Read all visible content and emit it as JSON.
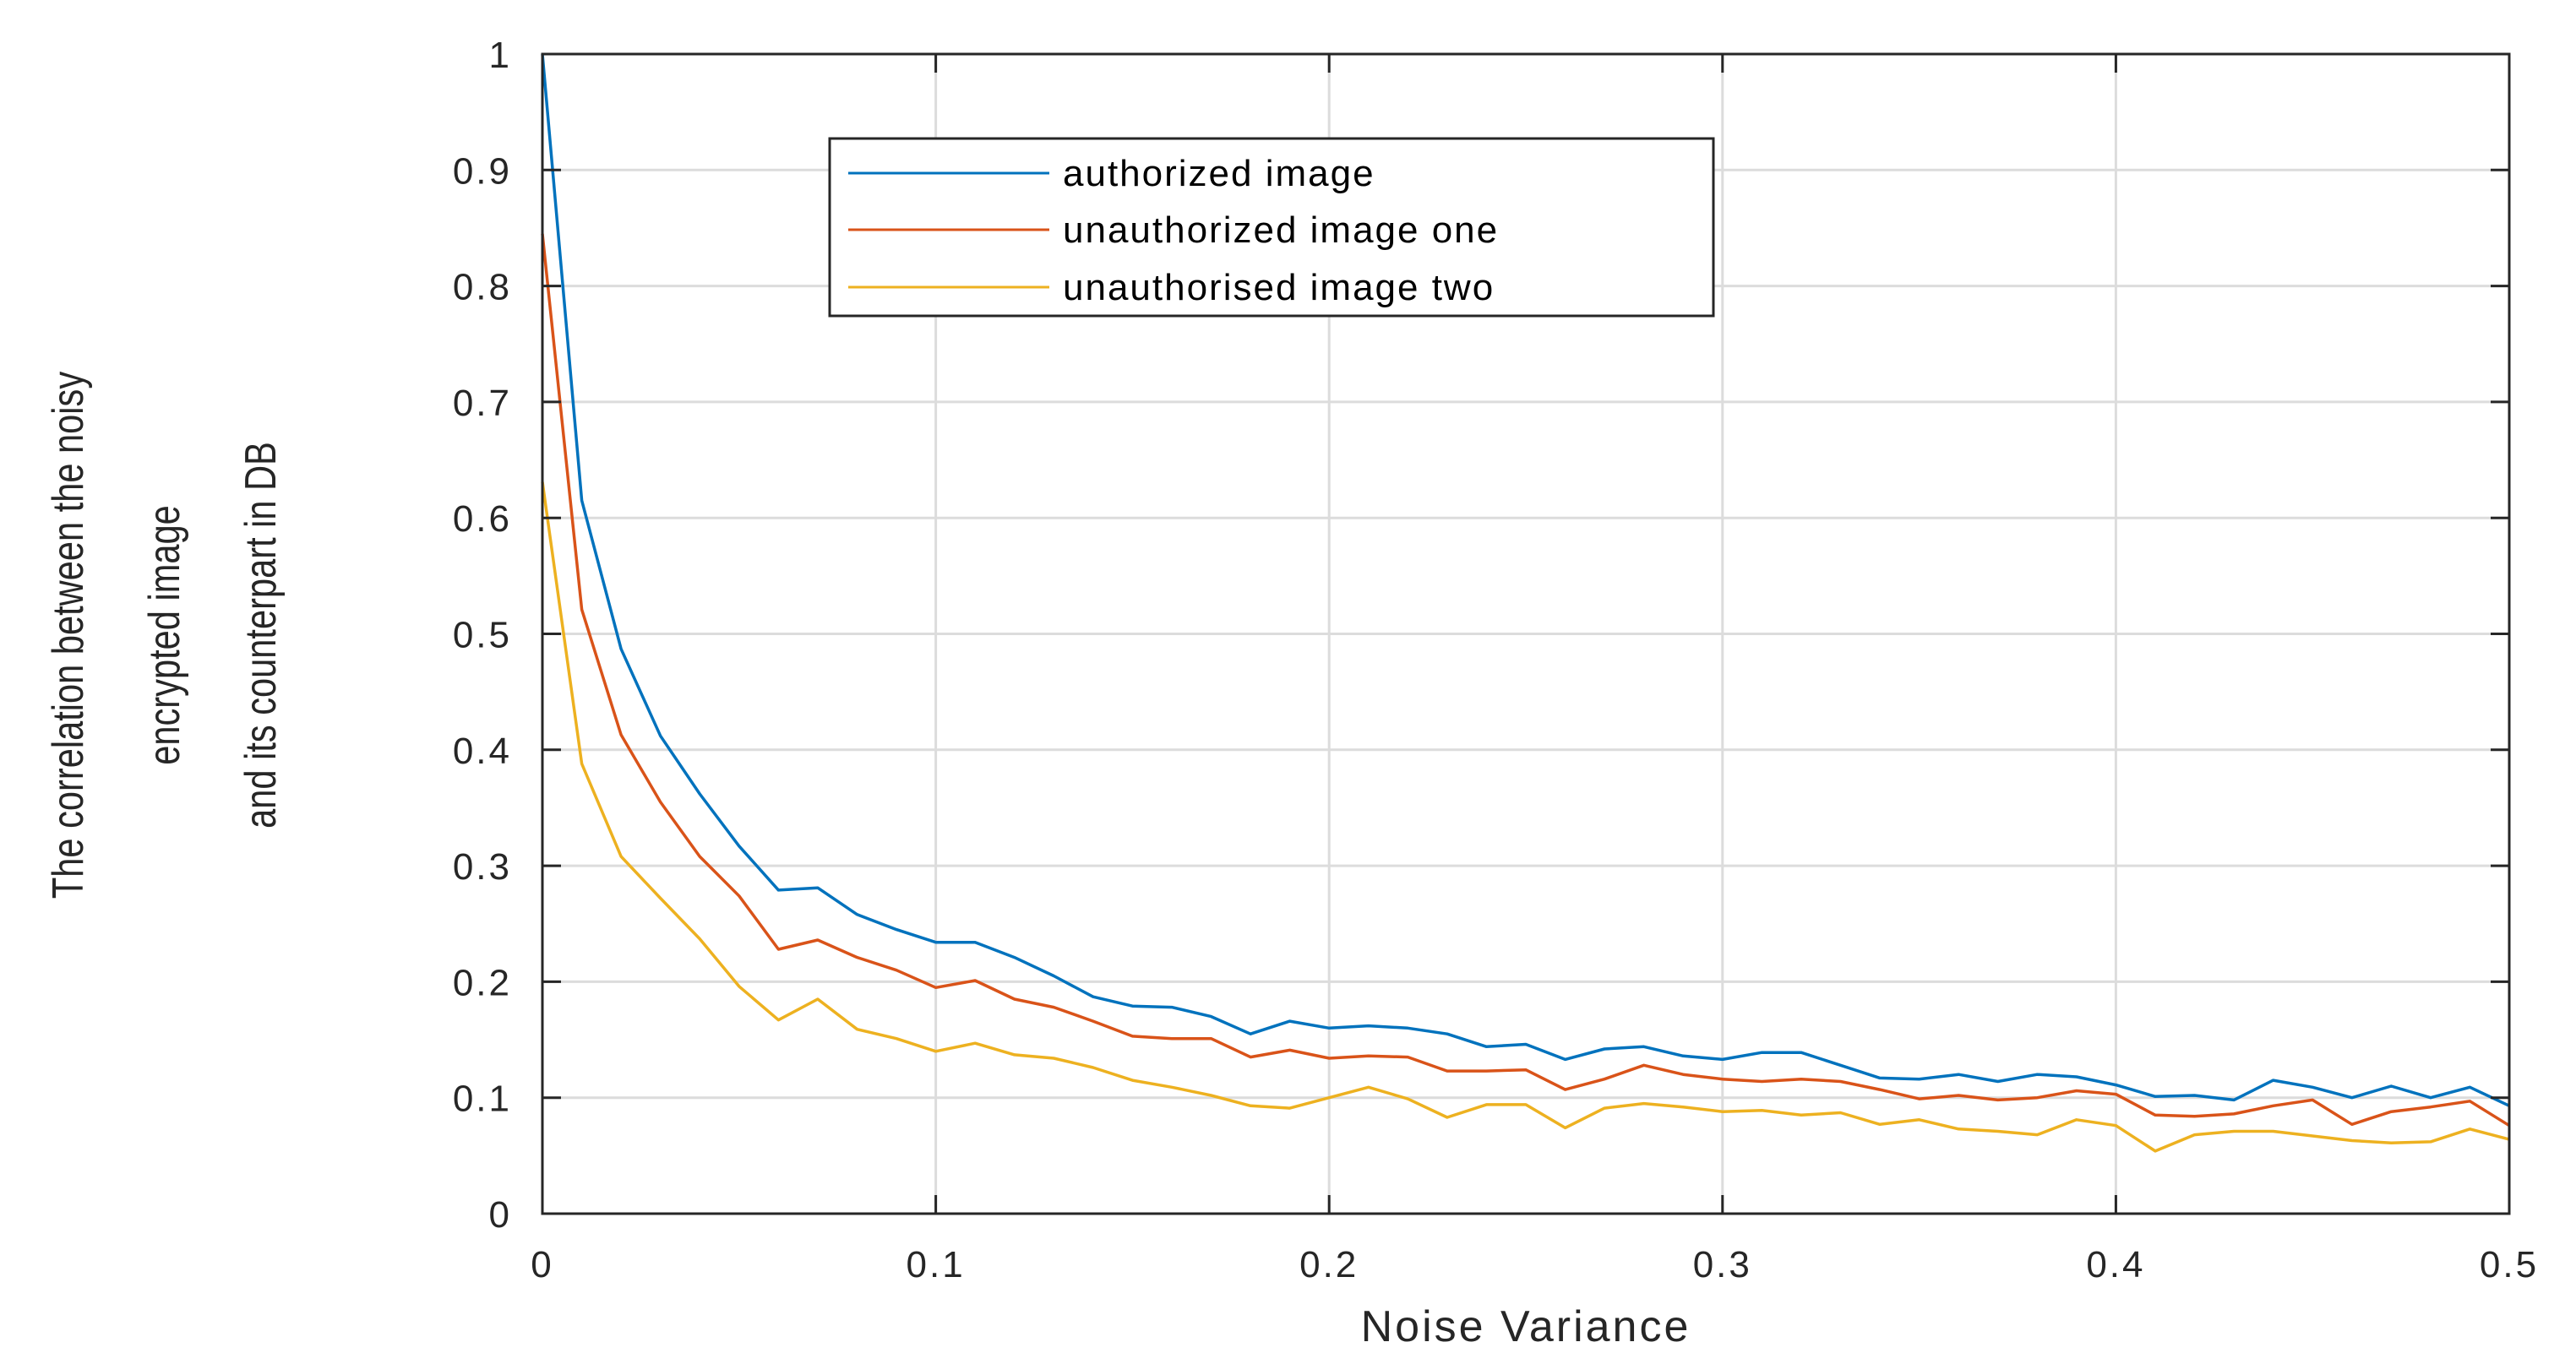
{
  "chart_data": {
    "type": "line",
    "title": "",
    "xlabel": "Noise Variance",
    "ylabel_lines": [
      "The correlation between the noisy",
      "encrypted  image",
      "and its counterpart in DB"
    ],
    "xlim": [
      0,
      0.5
    ],
    "ylim": [
      0,
      1
    ],
    "xticks": [
      0,
      0.1,
      0.2,
      0.3,
      0.4,
      0.5
    ],
    "xtick_labels": [
      "0",
      "0.1",
      "0.2",
      "0.3",
      "0.4",
      "0.5"
    ],
    "yticks": [
      0,
      0.1,
      0.2,
      0.3,
      0.4,
      0.5,
      0.6,
      0.7,
      0.8,
      0.9,
      1
    ],
    "ytick_labels": [
      "0",
      "0.1",
      "0.2",
      "0.3",
      "0.4",
      "0.5",
      "0.6",
      "0.7",
      "0.8",
      "0.9",
      "1"
    ],
    "grid": true,
    "legend_position": "top-center",
    "x": [
      0,
      0.01,
      0.02,
      0.03,
      0.04,
      0.05,
      0.06,
      0.07,
      0.08,
      0.09,
      0.1,
      0.11,
      0.12,
      0.13,
      0.14,
      0.15,
      0.16,
      0.17,
      0.18,
      0.19,
      0.2,
      0.21,
      0.22,
      0.23,
      0.24,
      0.25,
      0.26,
      0.27,
      0.28,
      0.29,
      0.3,
      0.31,
      0.32,
      0.33,
      0.34,
      0.35,
      0.36,
      0.37,
      0.38,
      0.39,
      0.4,
      0.41,
      0.42,
      0.43,
      0.44,
      0.45,
      0.46,
      0.47,
      0.48,
      0.49,
      0.5
    ],
    "series": [
      {
        "name": "authorized image",
        "color": "#0072BD",
        "values": [
          1.0,
          0.615,
          0.487,
          0.412,
          0.362,
          0.317,
          0.279,
          0.281,
          0.258,
          0.245,
          0.234,
          0.234,
          0.221,
          0.205,
          0.187,
          0.179,
          0.178,
          0.17,
          0.155,
          0.166,
          0.16,
          0.162,
          0.16,
          0.155,
          0.144,
          0.146,
          0.133,
          0.142,
          0.144,
          0.136,
          0.133,
          0.139,
          0.139,
          0.128,
          0.117,
          0.116,
          0.12,
          0.114,
          0.12,
          0.118,
          0.111,
          0.101,
          0.102,
          0.098,
          0.115,
          0.109,
          0.1,
          0.11,
          0.1,
          0.109,
          0.093
        ]
      },
      {
        "name": "unauthorized image one",
        "color": "#D95319",
        "values": [
          0.845,
          0.521,
          0.413,
          0.355,
          0.308,
          0.274,
          0.228,
          0.236,
          0.221,
          0.21,
          0.195,
          0.201,
          0.185,
          0.178,
          0.166,
          0.153,
          0.151,
          0.151,
          0.135,
          0.141,
          0.134,
          0.136,
          0.135,
          0.123,
          0.123,
          0.124,
          0.107,
          0.116,
          0.128,
          0.12,
          0.116,
          0.114,
          0.116,
          0.114,
          0.107,
          0.099,
          0.102,
          0.098,
          0.1,
          0.106,
          0.103,
          0.085,
          0.084,
          0.086,
          0.093,
          0.098,
          0.077,
          0.088,
          0.092,
          0.097,
          0.076
        ]
      },
      {
        "name": "unauthorised image two",
        "color": "#EDB120",
        "values": [
          0.631,
          0.388,
          0.308,
          0.272,
          0.237,
          0.196,
          0.167,
          0.185,
          0.159,
          0.151,
          0.14,
          0.147,
          0.137,
          0.134,
          0.126,
          0.115,
          0.109,
          0.102,
          0.093,
          0.091,
          0.1,
          0.109,
          0.099,
          0.083,
          0.094,
          0.094,
          0.074,
          0.091,
          0.095,
          0.092,
          0.088,
          0.089,
          0.085,
          0.087,
          0.077,
          0.081,
          0.073,
          0.071,
          0.068,
          0.081,
          0.076,
          0.054,
          0.068,
          0.071,
          0.071,
          0.067,
          0.063,
          0.061,
          0.062,
          0.073,
          0.064
        ]
      }
    ]
  }
}
